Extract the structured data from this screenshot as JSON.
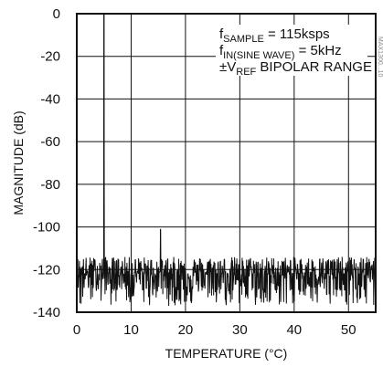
{
  "chart_data": {
    "type": "line",
    "title": "",
    "xlabel": "TEMPERATURE (°C)",
    "ylabel": "MAGNITUDE (dB)",
    "xlim": [
      0,
      55
    ],
    "ylim": [
      -140,
      0
    ],
    "x_ticks": [
      0,
      10,
      20,
      30,
      40,
      50
    ],
    "x_tick_labels": [
      "0",
      "10",
      "20",
      "30",
      "40",
      "50"
    ],
    "y_ticks": [
      0,
      -20,
      -40,
      -60,
      -80,
      -100,
      -120,
      -140
    ],
    "y_tick_labels": [
      "0",
      "-20",
      "-40",
      "-60",
      "-80",
      "-100",
      "-120",
      "-140"
    ],
    "grid": true,
    "annotation": {
      "line1": {
        "text": "f",
        "sub": "SAMPLE",
        "rest": " = 115ksps"
      },
      "line2": {
        "text": "f",
        "sub": "IN(SINE WAVE)",
        "rest": " = 5kHz"
      },
      "line3": {
        "text": "±V",
        "sub": "REF",
        "rest": " BIPOLAR RANGE"
      }
    },
    "side_note": "MAX1300...10",
    "series": [
      {
        "noise_floor_db": -121,
        "noise_min_db": -137,
        "noise_max_db": -112,
        "peaks": [
          {
            "x": 5.0,
            "y": 0
          },
          {
            "x": 15.4,
            "y": -101
          }
        ]
      }
    ],
    "colors": {
      "trace": "#111111",
      "grid": "#111111"
    }
  }
}
